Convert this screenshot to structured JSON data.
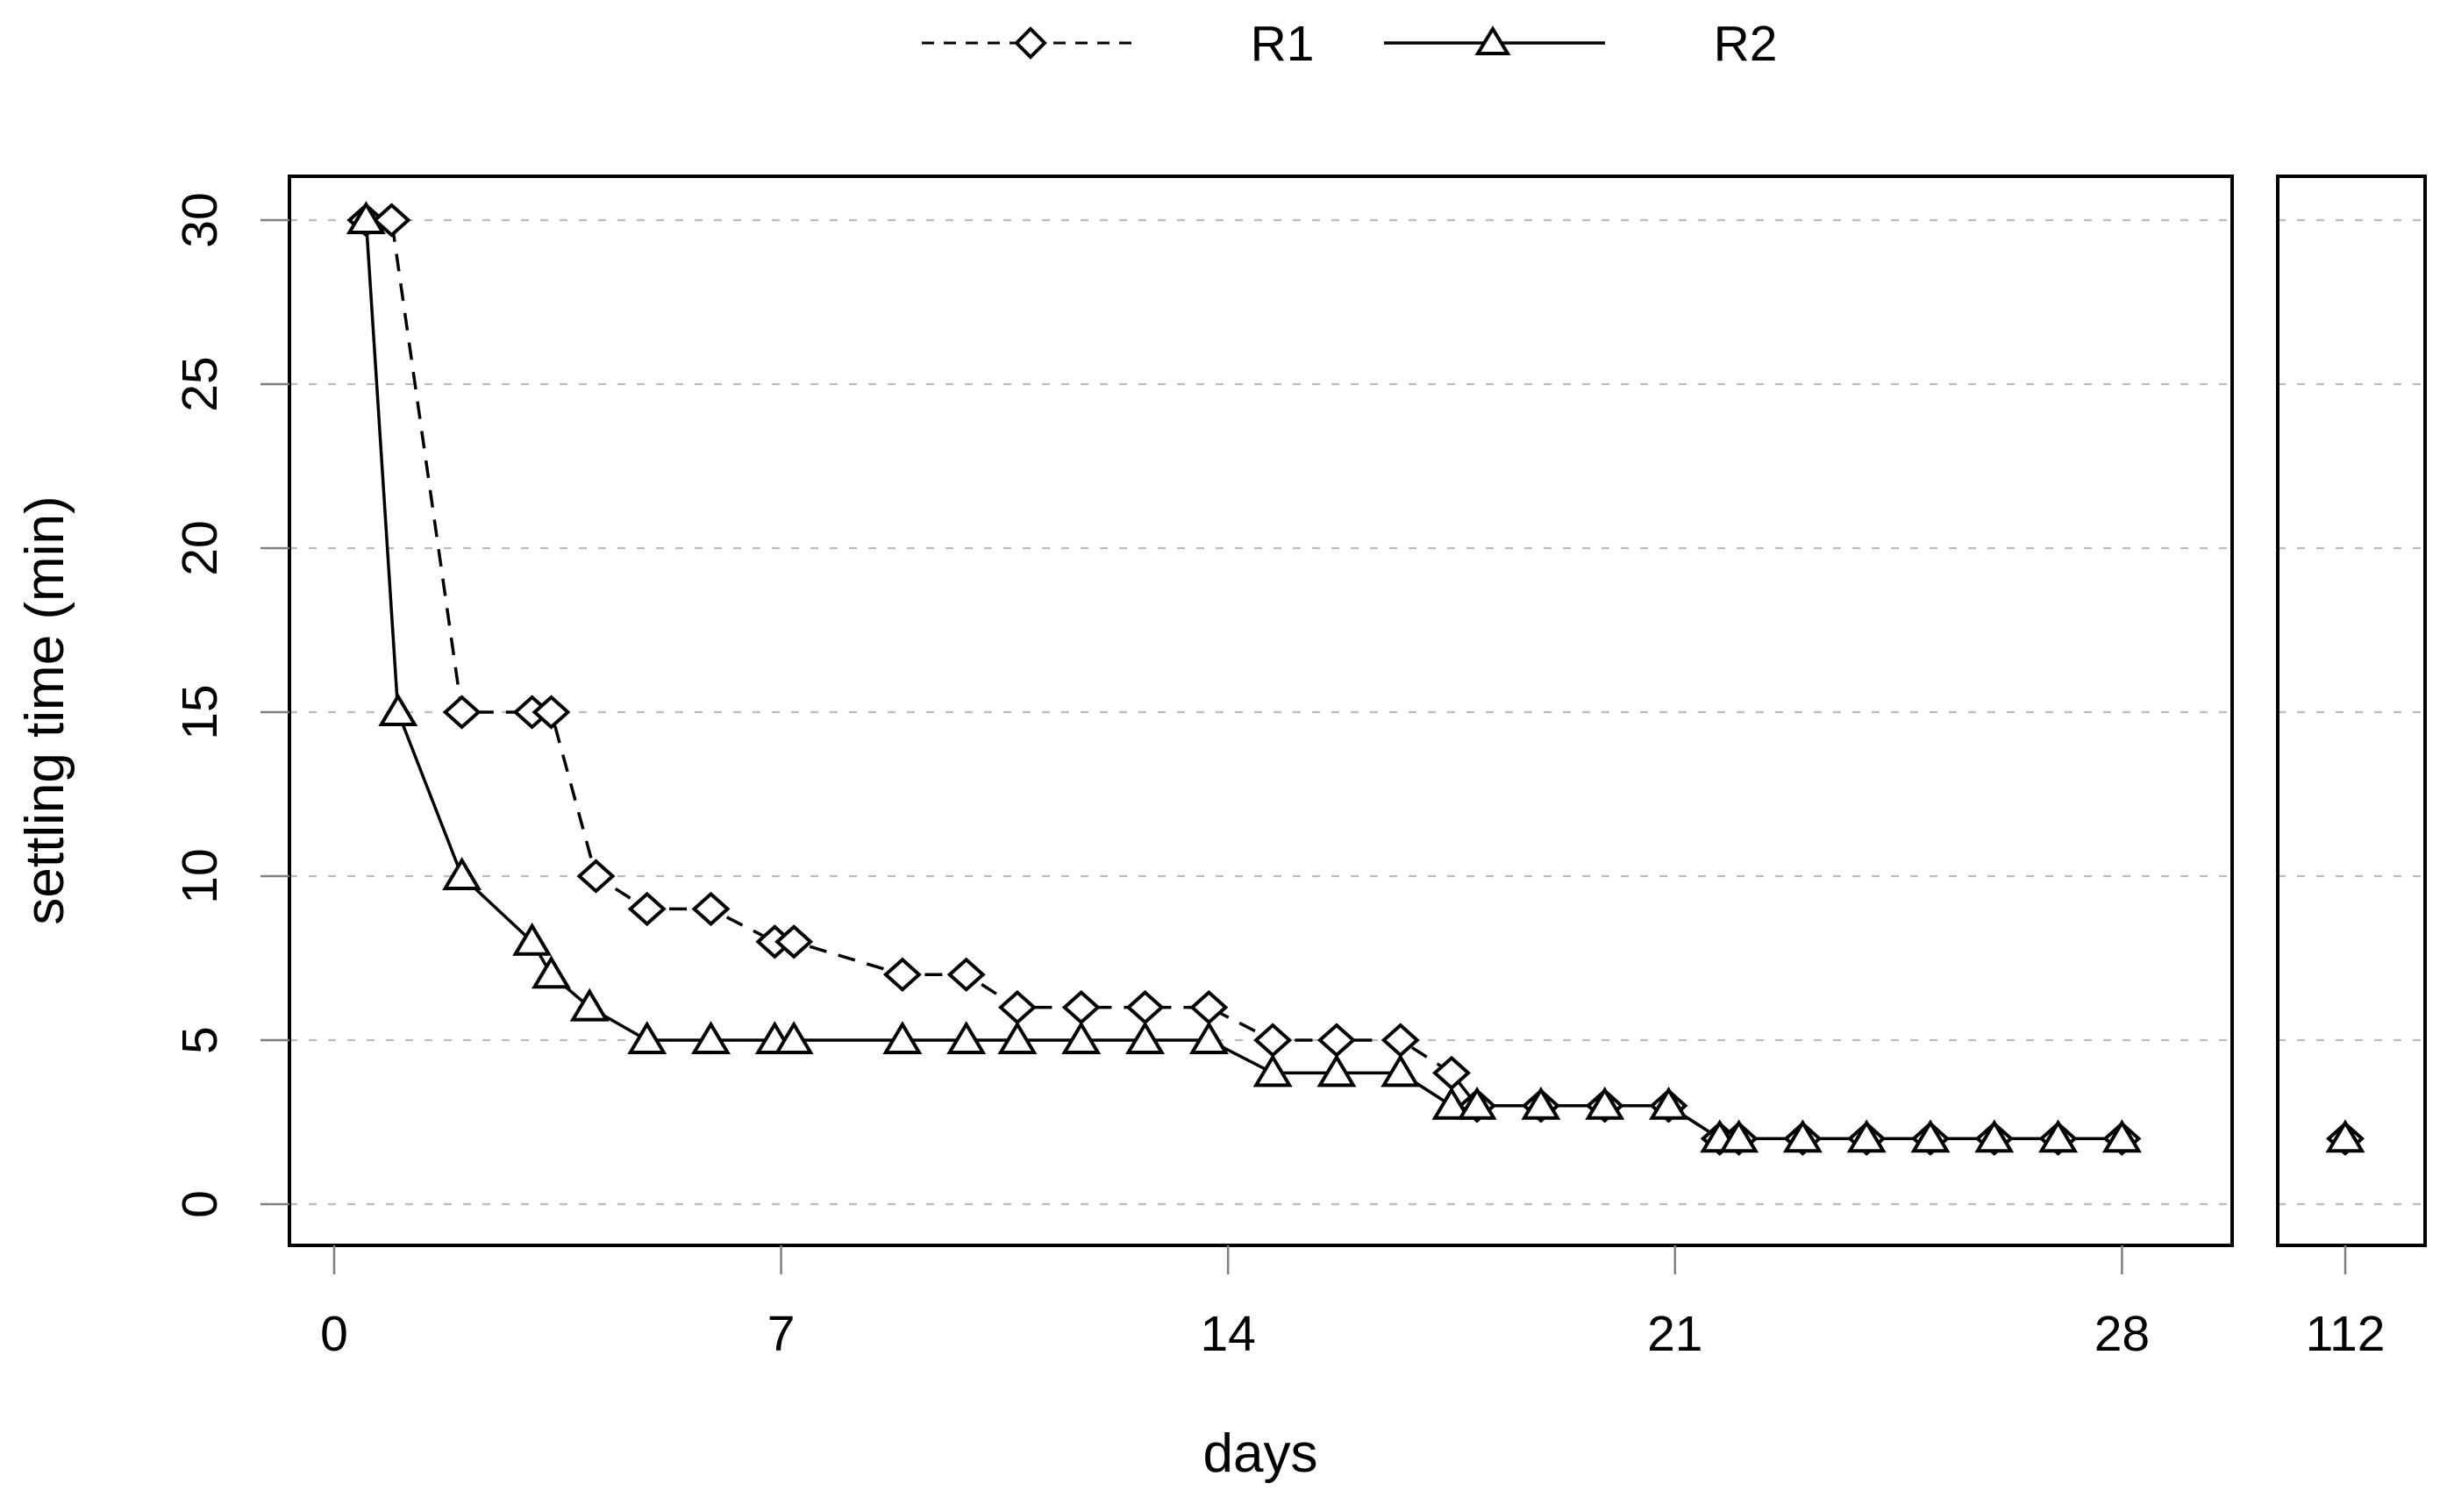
{
  "chart_data": {
    "type": "line",
    "title": "",
    "xlabel": "days",
    "ylabel": "settling time (min)",
    "legend_position": "top-center",
    "grid": "horizontal-dashed",
    "ylim": [
      0,
      30
    ],
    "y_ticks": [
      0,
      5,
      10,
      15,
      20,
      25,
      30
    ],
    "x_ticks_main": [
      0,
      7,
      14,
      21,
      28
    ],
    "x_break": {
      "day": 112,
      "label": "112"
    },
    "series": [
      {
        "name": "R1",
        "marker": "diamond",
        "line": "dashed",
        "points": [
          [
            0.5,
            30
          ],
          [
            0.9,
            30
          ],
          [
            2,
            15
          ],
          [
            3.1,
            15
          ],
          [
            3.4,
            15
          ],
          [
            4.1,
            10
          ],
          [
            4.9,
            9
          ],
          [
            5.9,
            9
          ],
          [
            6.9,
            8
          ],
          [
            7.2,
            8
          ],
          [
            8.9,
            7
          ],
          [
            9.9,
            7
          ],
          [
            10.7,
            6
          ],
          [
            11.7,
            6
          ],
          [
            12.7,
            6
          ],
          [
            13.7,
            6
          ],
          [
            14.7,
            5
          ],
          [
            15.7,
            5
          ],
          [
            16.7,
            5
          ],
          [
            17.5,
            4
          ],
          [
            17.9,
            3
          ],
          [
            18.9,
            3
          ],
          [
            19.9,
            3
          ],
          [
            20.9,
            3
          ],
          [
            21.7,
            2
          ],
          [
            22,
            2
          ],
          [
            23,
            2
          ],
          [
            24,
            2
          ],
          [
            25,
            2
          ],
          [
            26,
            2
          ],
          [
            27,
            2
          ],
          [
            28,
            2
          ]
        ],
        "break_points": [
          [
            112,
            2
          ]
        ]
      },
      {
        "name": "R2",
        "marker": "triangle",
        "line": "solid",
        "points": [
          [
            0.5,
            30
          ],
          [
            1,
            15
          ],
          [
            2,
            10
          ],
          [
            3.1,
            8
          ],
          [
            3.4,
            7
          ],
          [
            4,
            6
          ],
          [
            4.9,
            5
          ],
          [
            5.9,
            5
          ],
          [
            6.9,
            5
          ],
          [
            7.2,
            5
          ],
          [
            8.9,
            5
          ],
          [
            9.9,
            5
          ],
          [
            10.7,
            5
          ],
          [
            11.7,
            5
          ],
          [
            12.7,
            5
          ],
          [
            13.7,
            5
          ],
          [
            14.7,
            4
          ],
          [
            15.7,
            4
          ],
          [
            16.7,
            4
          ],
          [
            17.5,
            3
          ],
          [
            17.9,
            3
          ],
          [
            18.9,
            3
          ],
          [
            19.9,
            3
          ],
          [
            20.9,
            3
          ],
          [
            21.7,
            2
          ],
          [
            22,
            2
          ],
          [
            23,
            2
          ],
          [
            24,
            2
          ],
          [
            25,
            2
          ],
          [
            26,
            2
          ],
          [
            27,
            2
          ],
          [
            28,
            2
          ]
        ],
        "break_points": [
          [
            112,
            2
          ]
        ]
      }
    ]
  }
}
